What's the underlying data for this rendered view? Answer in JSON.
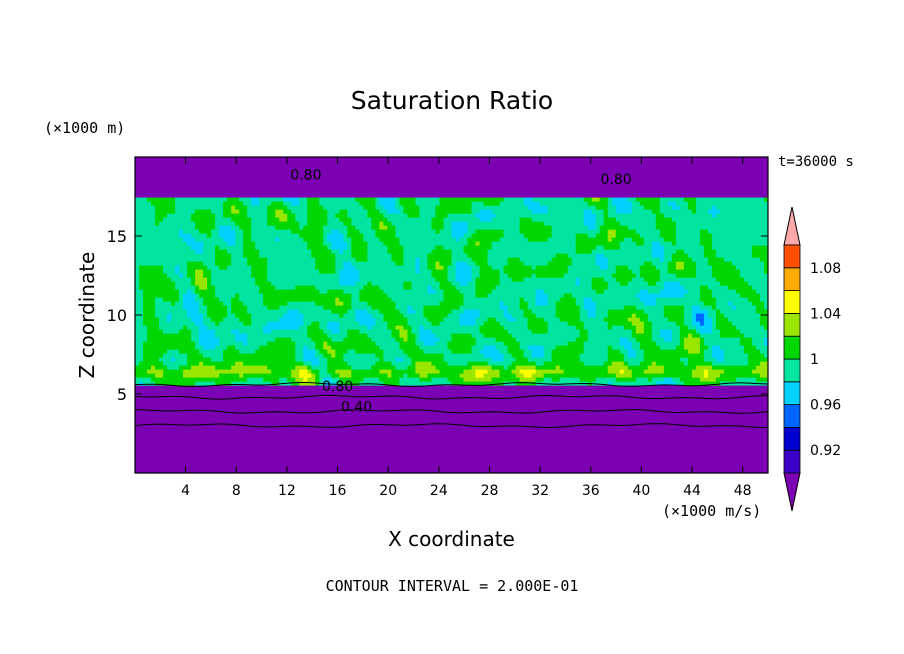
{
  "chart_data": {
    "type": "heatmap",
    "title": "Saturation Ratio",
    "xlabel": "X coordinate",
    "ylabel": "Z coordinate",
    "x_units": "(×1000 m/s)",
    "y_units": "(×1000 m)",
    "time_label": "t=36000 s",
    "xlim": [
      0,
      50
    ],
    "ylim": [
      0,
      20
    ],
    "x_ticks": [
      4,
      8,
      12,
      16,
      20,
      24,
      28,
      32,
      36,
      40,
      44,
      48
    ],
    "y_ticks": [
      5,
      10,
      15
    ],
    "contour_labels": [
      {
        "text": "0.80",
        "x": 13.5,
        "z": 18.9
      },
      {
        "text": "0.80",
        "x": 38.0,
        "z": 18.6
      },
      {
        "text": "0.80",
        "x": 16.0,
        "z": 5.5
      },
      {
        "text": "0.40",
        "x": 17.5,
        "z": 4.2
      }
    ],
    "colorbar": {
      "levels": [
        0.9,
        0.92,
        0.94,
        0.96,
        0.98,
        1.0,
        1.02,
        1.04,
        1.06,
        1.08,
        1.1
      ],
      "tick_labels": [
        "0.92",
        "0.96",
        "1",
        "1.04",
        "1.08"
      ],
      "colors": [
        "#7c00b4",
        "#3c00c8",
        "#0000d2",
        "#0064ff",
        "#00d2ff",
        "#00e6a0",
        "#00d700",
        "#9be600",
        "#ffff00",
        "#ffaa00",
        "#ff5000",
        "#ffaaaa"
      ],
      "extend": "both"
    },
    "contour_interval": "2.000E-01"
  },
  "footer": {
    "contour_interval_label": "CONTOUR INTERVAL = 2.000E-01"
  }
}
